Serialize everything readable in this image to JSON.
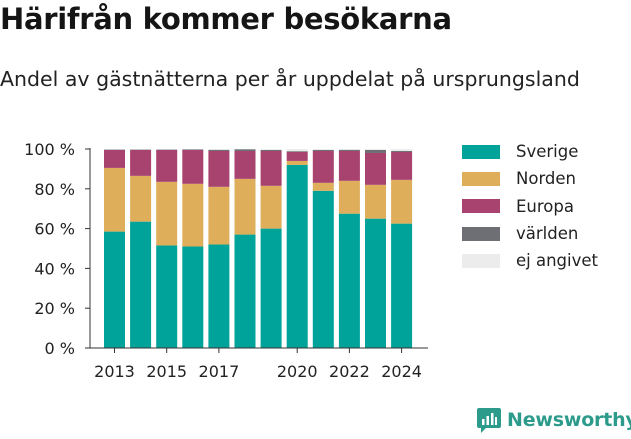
{
  "title": "Härifrån kommer besökarna",
  "subtitle": "Andel av gästnätterna per år uppdelat på ursprungsland",
  "brand": {
    "name": "Newsworthy",
    "color": "#2d9b8c"
  },
  "chart_data": {
    "type": "bar",
    "stacked": true,
    "categories": [
      "2013",
      "2014",
      "2015",
      "2016",
      "2017",
      "2018",
      "2019",
      "2020",
      "2021",
      "2022",
      "2023",
      "2024"
    ],
    "x_tick_labels": [
      "2013",
      "",
      "2015",
      "",
      "2017",
      "",
      "",
      "2020",
      "",
      "2022",
      "",
      "2024"
    ],
    "y_ticks": [
      0,
      20,
      40,
      60,
      80,
      100
    ],
    "y_tick_labels": [
      "0 %",
      "20 %",
      "40 %",
      "60 %",
      "80 %",
      "100 %"
    ],
    "ylim": [
      0,
      100
    ],
    "grid": false,
    "legend_position": "right",
    "series": [
      {
        "name": "Sverige",
        "color": "#00a39a",
        "values": [
          58.5,
          63.5,
          51.5,
          51,
          52,
          57,
          60,
          92,
          79,
          67.5,
          65,
          62.5
        ]
      },
      {
        "name": "Norden",
        "color": "#deae5a",
        "values": [
          32,
          23,
          32,
          31.5,
          29,
          28,
          21.5,
          2,
          4,
          16.5,
          17,
          22
        ]
      },
      {
        "name": "Europa",
        "color": "#a8426e",
        "values": [
          9,
          13,
          16,
          17,
          18,
          14,
          17.5,
          4.5,
          16,
          15,
          16,
          14
        ]
      },
      {
        "name": "världen",
        "color": "#6e6f75",
        "values": [
          0.2,
          0.2,
          0.2,
          0.3,
          0.6,
          0.9,
          0.5,
          0.4,
          0.5,
          0.6,
          1.5,
          0.5
        ]
      },
      {
        "name": "ej angivet",
        "color": "#ececec",
        "values": [
          0.3,
          0.3,
          0.3,
          0.2,
          0.4,
          0.1,
          0.5,
          1.1,
          0.5,
          0.4,
          0.5,
          1.0
        ]
      }
    ]
  }
}
